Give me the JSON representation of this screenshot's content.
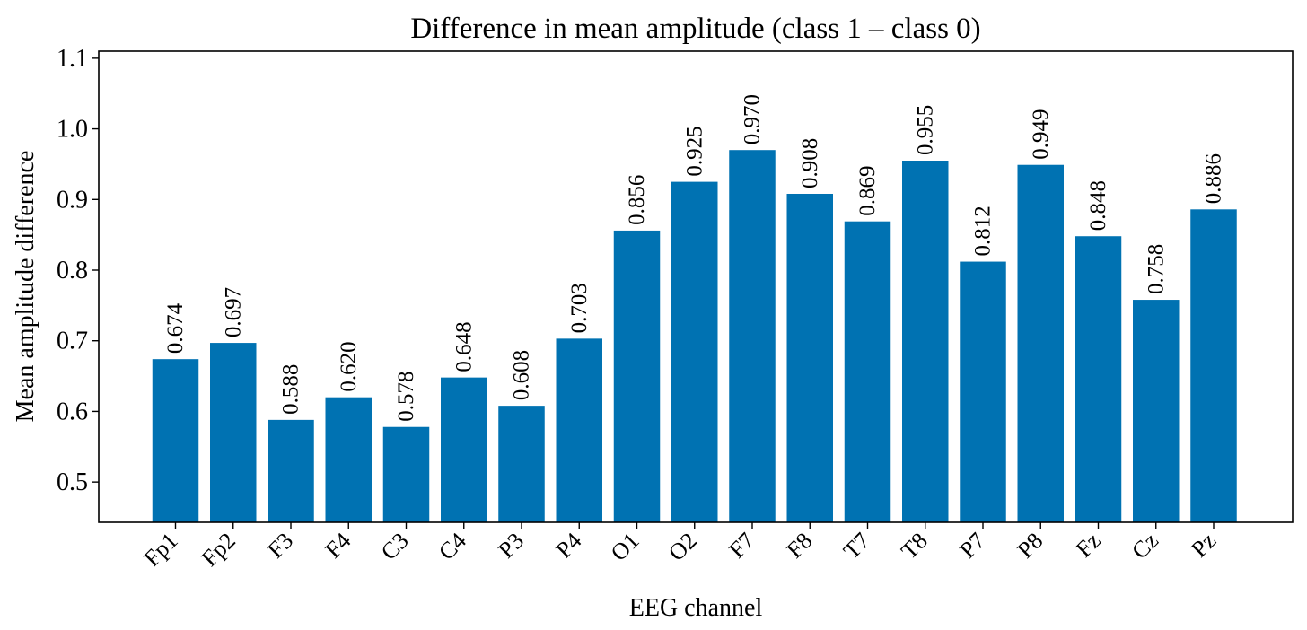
{
  "chart_data": {
    "type": "bar",
    "title": "Difference in mean amplitude (class 1 – class 0)",
    "xlabel": "EEG channel",
    "ylabel": "Mean amplitude difference",
    "categories": [
      "Fp1",
      "Fp2",
      "F3",
      "F4",
      "C3",
      "C4",
      "P3",
      "P4",
      "O1",
      "O2",
      "F7",
      "F8",
      "T7",
      "T8",
      "P7",
      "P8",
      "Fz",
      "Cz",
      "Pz"
    ],
    "values": [
      0.674,
      0.697,
      0.588,
      0.62,
      0.578,
      0.648,
      0.608,
      0.703,
      0.856,
      0.925,
      0.97,
      0.908,
      0.869,
      0.955,
      0.812,
      0.949,
      0.848,
      0.758,
      0.886
    ],
    "value_labels": [
      "0.674",
      "0.697",
      "0.588",
      "0.620",
      "0.578",
      "0.648",
      "0.608",
      "0.703",
      "0.856",
      "0.925",
      "0.970",
      "0.908",
      "0.869",
      "0.955",
      "0.812",
      "0.949",
      "0.848",
      "0.758",
      "0.886"
    ],
    "ylim": [
      0.443,
      1.11
    ],
    "yticks": [
      0.5,
      0.6,
      0.7,
      0.8,
      0.9,
      1.0,
      1.1
    ],
    "ytick_labels": [
      "0.5",
      "0.6",
      "0.7",
      "0.8",
      "0.9",
      "1.0",
      "1.1"
    ],
    "bar_color": "#0072B2",
    "grid": false,
    "legend": "none"
  }
}
